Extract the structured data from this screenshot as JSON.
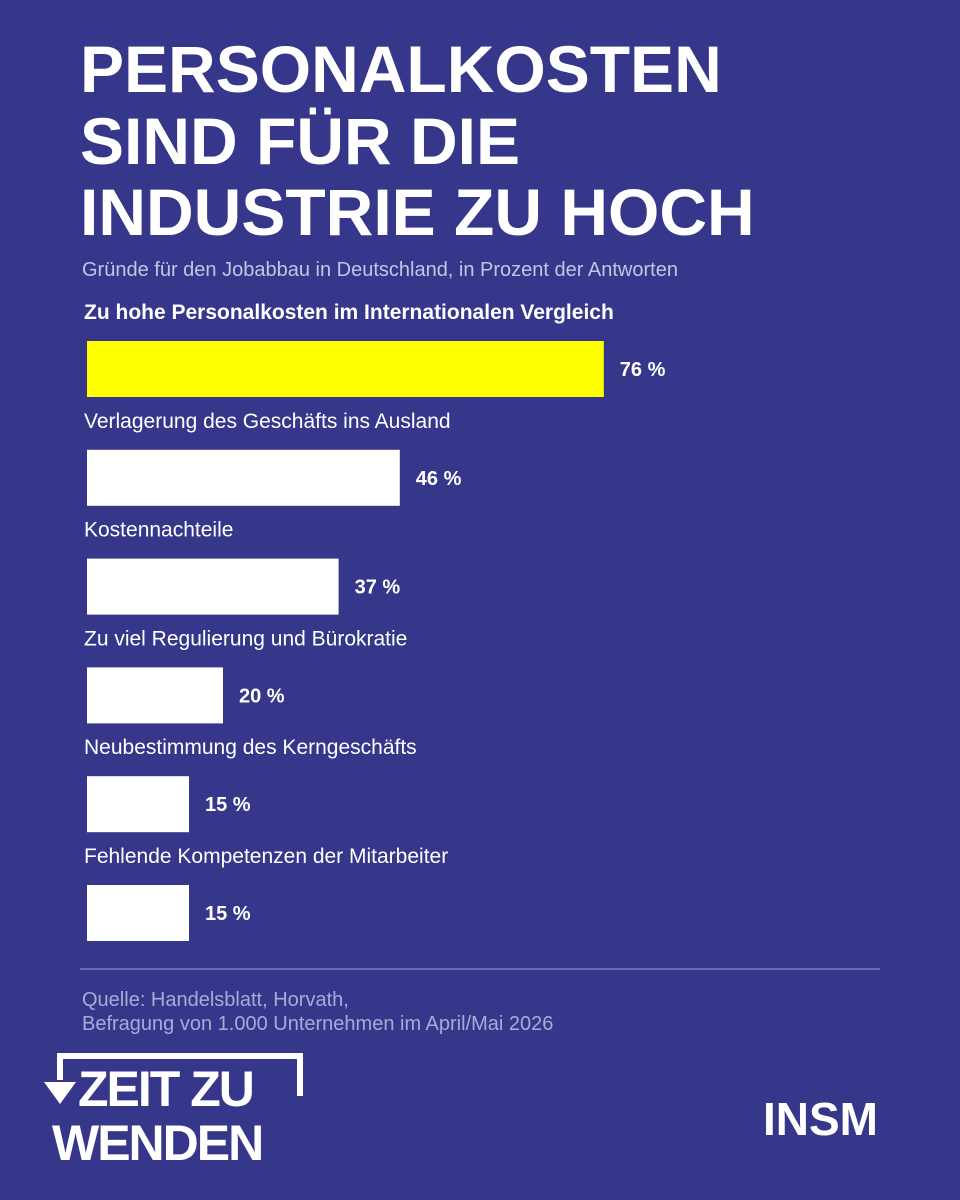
{
  "chart_data": {
    "type": "hbar",
    "title": [
      "PERSONALKOSTEN",
      "SIND FÜR DIE",
      "INDUSTRIE ZU HOCH"
    ],
    "subtitle": "Gründe für den Jobabbau in Deutschland, in Prozent der Antworten",
    "categories": [
      "Zu hohe Personalkosten im Internationalen Vergleich",
      "Verlagerung des Geschäfts ins Ausland",
      "Kostennachteile",
      "Zu viel Regulierung und Bürokratie",
      "Neubestimmung des Kerngeschäfts",
      "Fehlende Kompetenzen der Mitarbeiter"
    ],
    "values": [
      76,
      46,
      37,
      20,
      15,
      15
    ],
    "value_labels": [
      "76 %",
      "46 %",
      "37 %",
      "20 %",
      "15 %",
      "15 %"
    ],
    "colors": [
      "#ffff00",
      "#ffffff",
      "#ffffff",
      "#ffffff",
      "#ffffff",
      "#ffffff"
    ],
    "highlight": 0,
    "source": [
      "Quelle: Handelsblatt, Horvath,",
      "Befragung von 1.000 Unternehmen im April/Mai 2026"
    ]
  },
  "branding": {
    "campaign": [
      "ZEIT ZU",
      "WENDEN"
    ],
    "logo": "INSM"
  }
}
